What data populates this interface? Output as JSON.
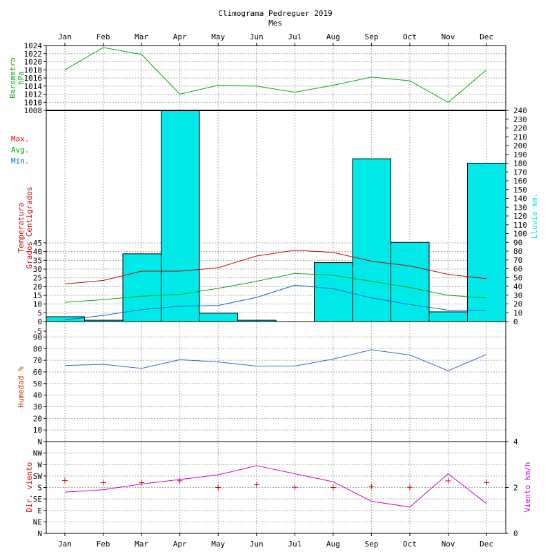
{
  "chart_data": {
    "type": "line",
    "title": "Climograma Pedreguer 2019",
    "subtitle": "Mes",
    "categories": [
      "Jan",
      "Feb",
      "Mar",
      "Apr",
      "May",
      "Jun",
      "Jul",
      "Aug",
      "Sep",
      "Oct",
      "Nov",
      "Dec"
    ],
    "colors": {
      "max": "#cc0000",
      "avg": "#00aa00",
      "min": "#0066cc",
      "rain": "#00e8e8",
      "humidity": "#3366cc",
      "wind": "#cc00cc",
      "dir": "#dd0000",
      "barometer": "#00aa00"
    },
    "barometer": {
      "ylabel": [
        "Barometro",
        "hPa"
      ],
      "ticks": [
        "1008",
        "1010",
        "1012",
        "1014",
        "1016",
        "1018",
        "1020",
        "1022",
        "1024"
      ],
      "ylim": [
        1008,
        1024
      ],
      "values": [
        1018.0,
        1023.5,
        1021.8,
        1012.0,
        1014.2,
        1014.0,
        1012.5,
        1014.2,
        1016.2,
        1015.3,
        1010.0,
        1018.0
      ]
    },
    "temperature": {
      "ylabel": [
        "Temperatura",
        "Grados Centigrados"
      ],
      "legend": [
        "Max.",
        "Avg.",
        "Min."
      ],
      "ticks": [
        "0",
        "5",
        "10",
        "15",
        "20",
        "25",
        "30",
        "35",
        "40",
        "45"
      ],
      "series": [
        {
          "name": "Max.",
          "values": [
            21.5,
            23.5,
            28.8,
            28.8,
            30.8,
            37.5,
            40.8,
            39.5,
            34.5,
            31.8,
            27.0,
            24.5
          ]
        },
        {
          "name": "Avg.",
          "values": [
            11.0,
            12.5,
            14.5,
            15.5,
            19.0,
            23.0,
            27.5,
            26.5,
            23.0,
            19.5,
            15.0,
            13.5
          ]
        },
        {
          "name": "Min.",
          "values": [
            1.0,
            3.5,
            6.8,
            8.8,
            9.2,
            13.8,
            20.8,
            18.8,
            13.5,
            9.8,
            6.5,
            6.5
          ]
        }
      ]
    },
    "rain": {
      "ylabel": "Lluvia mm.",
      "ticks": [
        "0",
        "10",
        "20",
        "30",
        "40",
        "50",
        "60",
        "70",
        "80",
        "90",
        "100",
        "110",
        "120",
        "130",
        "140",
        "150",
        "160",
        "170",
        "180",
        "190",
        "200",
        "210",
        "220",
        "230",
        "240"
      ],
      "ylim": [
        0,
        240
      ],
      "values": [
        5.5,
        1.5,
        77,
        240,
        9.5,
        1.5,
        0,
        67,
        185,
        90,
        11,
        180
      ]
    },
    "humidity": {
      "ylabel": "Humedad %",
      "ticks": [
        "N",
        "10",
        "20",
        "30",
        "40",
        "50",
        "60",
        "70",
        "80",
        "90",
        "-5"
      ],
      "values": [
        65.5,
        66.5,
        63.0,
        70.5,
        68.5,
        65.0,
        65.0,
        71.0,
        79.0,
        74.5,
        61.0,
        75.0
      ]
    },
    "wind": {
      "ylabel_dir": "Dir. viento",
      "ylabel_speed": "Viento km/h",
      "dir_ticks": [
        "N",
        "NE",
        "E",
        "SE",
        "S",
        "SW",
        "W",
        "NW"
      ],
      "speed_ticks": [
        "0",
        "2",
        "4"
      ],
      "direction_deg": [
        207,
        199,
        199,
        206,
        180,
        191,
        181,
        180,
        184,
        181,
        206,
        199
      ],
      "speed_kmh": [
        1.8,
        1.9,
        2.15,
        2.35,
        2.55,
        2.95,
        2.6,
        2.25,
        1.4,
        1.15,
        2.6,
        1.3
      ]
    }
  }
}
